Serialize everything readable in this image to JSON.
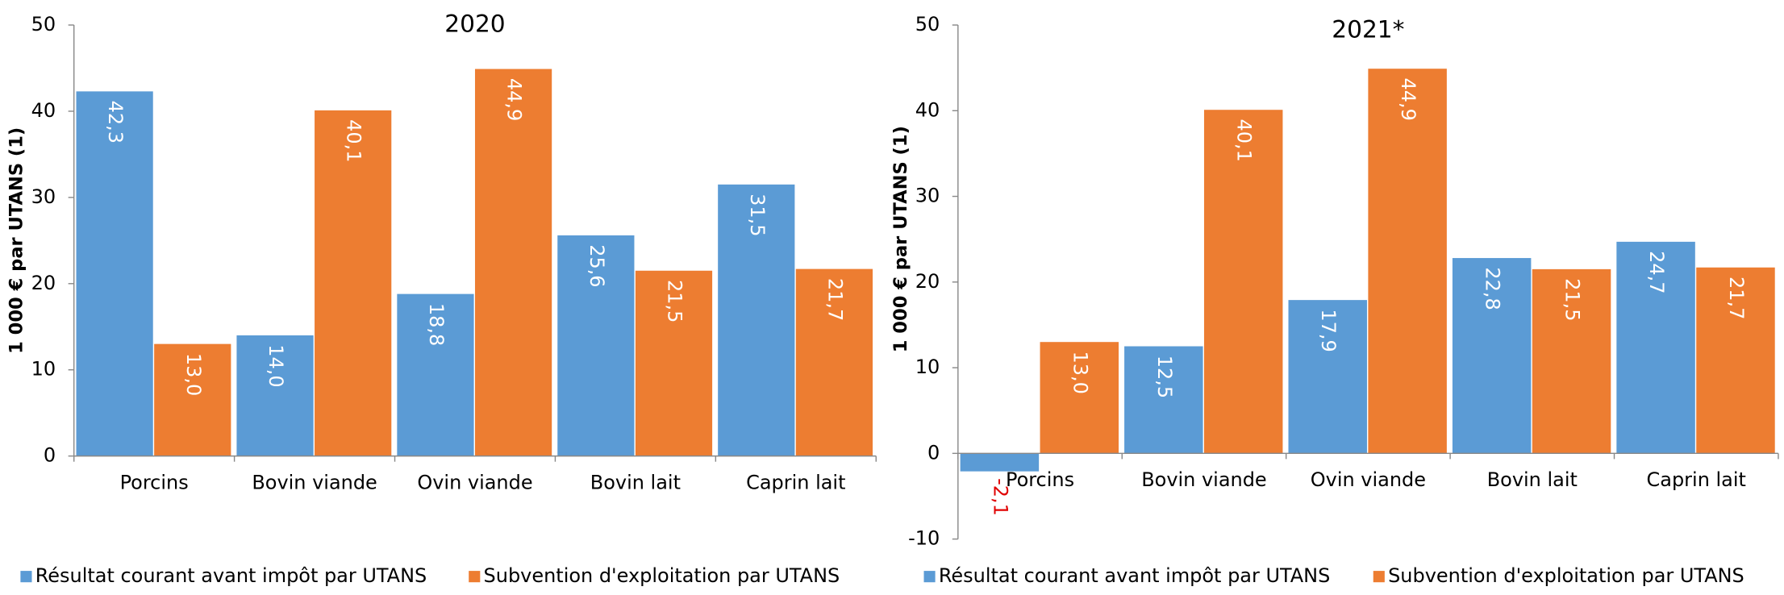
{
  "chart_data": [
    {
      "type": "bar",
      "title": "2020",
      "y_label": "1 000 € par UTANS (1)",
      "categories": [
        "Porcins",
        "Bovin viande",
        "Ovin viande",
        "Bovin lait",
        "Caprin lait"
      ],
      "series": [
        {
          "name": "Résultat courant avant impôt par UTANS",
          "color": "#5b9bd5",
          "values": [
            42.3,
            14.0,
            18.8,
            25.6,
            31.5
          ],
          "value_labels": [
            "42,3",
            "14,0",
            "18,8",
            "25,6",
            "31,5"
          ]
        },
        {
          "name": "Subvention d'exploitation par UTANS",
          "color": "#ed7d31",
          "values": [
            13.0,
            40.1,
            44.9,
            21.5,
            21.7
          ],
          "value_labels": [
            "13,0",
            "40,1",
            "44,9",
            "21,5",
            "21,7"
          ]
        }
      ],
      "ylim": [
        0,
        50
      ],
      "yticks": [
        0,
        10,
        20,
        30,
        40,
        50
      ]
    },
    {
      "type": "bar",
      "title": "2021*",
      "y_label": "1 000 € par UTANS (1)",
      "categories": [
        "Porcins",
        "Bovin viande",
        "Ovin viande",
        "Bovin lait",
        "Caprin lait"
      ],
      "series": [
        {
          "name": "Résultat courant avant impôt par UTANS",
          "color": "#5b9bd5",
          "values": [
            -2.1,
            12.5,
            17.9,
            22.8,
            24.7
          ],
          "value_labels": [
            "-2,1",
            "12,5",
            "17,9",
            "22,8",
            "24,7"
          ]
        },
        {
          "name": "Subvention d'exploitation par UTANS",
          "color": "#ed7d31",
          "values": [
            13.0,
            40.1,
            44.9,
            21.5,
            21.7
          ],
          "value_labels": [
            "13,0",
            "40,1",
            "44,9",
            "21,5",
            "21,7"
          ]
        }
      ],
      "ylim": [
        -10,
        50
      ],
      "yticks": [
        -10,
        0,
        10,
        20,
        30,
        40,
        50
      ]
    }
  ]
}
